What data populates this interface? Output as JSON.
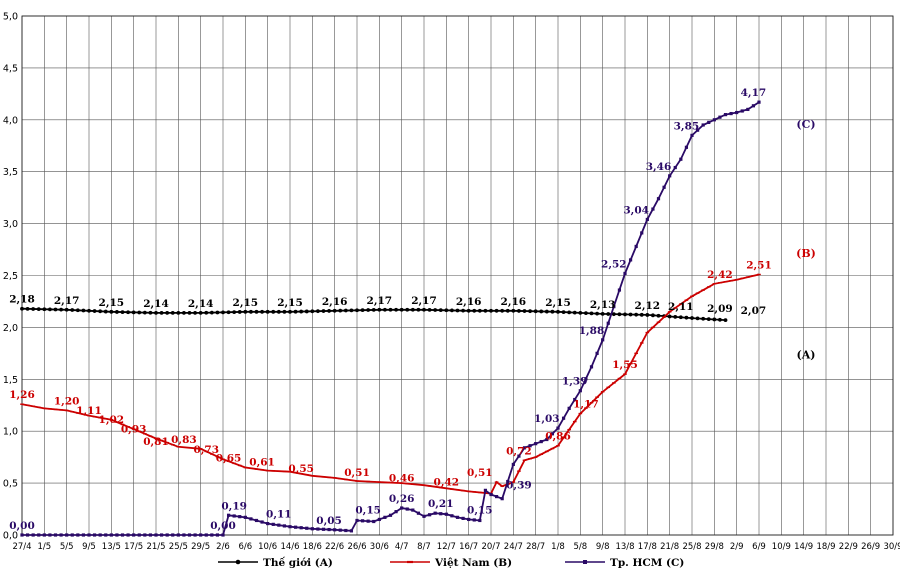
{
  "chart_data": {
    "type": "line",
    "title": "",
    "xlabel": "",
    "ylabel": "",
    "ylim": [
      0,
      5
    ],
    "yticks": [
      "0,0",
      "0,5",
      "1,0",
      "1,5",
      "2,0",
      "2,5",
      "3,0",
      "3,5",
      "4,0",
      "4,5",
      "5,0"
    ],
    "xticks": [
      "27/4",
      "1/5",
      "5/5",
      "9/5",
      "13/5",
      "17/5",
      "21/5",
      "25/5",
      "29/5",
      "2/6",
      "6/6",
      "10/6",
      "14/6",
      "18/6",
      "22/6",
      "26/6",
      "30/6",
      "4/7",
      "8/7",
      "12/7",
      "16/7",
      "20/7",
      "24/7",
      "28/7",
      "1/8",
      "5/8",
      "9/8",
      "13/8",
      "17/8",
      "21/8",
      "25/8",
      "29/8",
      "2/9",
      "6/9",
      "10/9",
      "14/9",
      "18/9",
      "22/9",
      "26/9",
      "30/9"
    ],
    "grid": true,
    "legend_position": "bottom",
    "series": [
      {
        "name": "Thế giới (A)",
        "side_label": "(A)",
        "color": "#000000",
        "x": [
          0,
          8,
          16,
          24,
          32,
          40,
          48,
          56,
          64,
          72,
          80,
          88,
          96,
          100,
          104,
          112,
          120,
          126
        ],
        "y": [
          2.18,
          2.17,
          2.15,
          2.14,
          2.14,
          2.15,
          2.15,
          2.16,
          2.17,
          2.17,
          2.16,
          2.16,
          2.15,
          2.14,
          2.13,
          2.12,
          2.09,
          2.07
        ],
        "labels": [
          {
            "x": 0,
            "y": 2.18,
            "text": "2,18"
          },
          {
            "x": 8,
            "y": 2.17,
            "text": "2,17"
          },
          {
            "x": 16,
            "y": 2.15,
            "text": "2,15"
          },
          {
            "x": 24,
            "y": 2.14,
            "text": "2,14"
          },
          {
            "x": 32,
            "y": 2.14,
            "text": "2,14"
          },
          {
            "x": 40,
            "y": 2.15,
            "text": "2,15"
          },
          {
            "x": 48,
            "y": 2.15,
            "text": "2,15"
          },
          {
            "x": 56,
            "y": 2.16,
            "text": "2,16"
          },
          {
            "x": 64,
            "y": 2.17,
            "text": "2,17"
          },
          {
            "x": 72,
            "y": 2.17,
            "text": "2,17"
          },
          {
            "x": 80,
            "y": 2.16,
            "text": "2,16"
          },
          {
            "x": 88,
            "y": 2.16,
            "text": "2,16"
          },
          {
            "x": 96,
            "y": 2.15,
            "text": "2,15"
          },
          {
            "x": 104,
            "y": 2.13,
            "text": "2,13"
          },
          {
            "x": 112,
            "y": 2.12,
            "text": "2,12"
          },
          {
            "x": 118,
            "y": 2.11,
            "text": "2,11"
          },
          {
            "x": 125,
            "y": 2.09,
            "text": "2,09"
          },
          {
            "x": 131,
            "y": 2.07,
            "text": "2,07"
          }
        ]
      },
      {
        "name": "Việt Nam (B)",
        "side_label": "(B)",
        "color": "#cc0000",
        "x": [
          0,
          4,
          8,
          12,
          16,
          20,
          24,
          28,
          32,
          36,
          40,
          44,
          48,
          52,
          56,
          60,
          64,
          68,
          72,
          76,
          80,
          84,
          85,
          86,
          88,
          90,
          92,
          96,
          100,
          104,
          108,
          112,
          116,
          120,
          124,
          128,
          132
        ],
        "y": [
          1.26,
          1.22,
          1.2,
          1.15,
          1.11,
          1.02,
          0.93,
          0.85,
          0.83,
          0.73,
          0.65,
          0.62,
          0.61,
          0.57,
          0.55,
          0.52,
          0.51,
          0.5,
          0.48,
          0.45,
          0.42,
          0.4,
          0.51,
          0.47,
          0.51,
          0.72,
          0.75,
          0.86,
          1.17,
          1.38,
          1.55,
          1.95,
          2.15,
          2.3,
          2.42,
          2.46,
          2.51
        ],
        "labels": [
          {
            "x": 0,
            "y": 1.26,
            "text": "1,26"
          },
          {
            "x": 8,
            "y": 1.2,
            "text": "1,20"
          },
          {
            "x": 12,
            "y": 1.11,
            "text": "1,11"
          },
          {
            "x": 16,
            "y": 1.02,
            "text": "1,02"
          },
          {
            "x": 20,
            "y": 0.93,
            "text": "0,93"
          },
          {
            "x": 24,
            "y": 0.81,
            "text": "0,81"
          },
          {
            "x": 29,
            "y": 0.83,
            "text": "0,83"
          },
          {
            "x": 33,
            "y": 0.73,
            "text": "0,73"
          },
          {
            "x": 37,
            "y": 0.65,
            "text": "0,65"
          },
          {
            "x": 43,
            "y": 0.61,
            "text": "0,61"
          },
          {
            "x": 50,
            "y": 0.55,
            "text": "0,55"
          },
          {
            "x": 60,
            "y": 0.51,
            "text": "0,51"
          },
          {
            "x": 68,
            "y": 0.46,
            "text": "0,46"
          },
          {
            "x": 76,
            "y": 0.42,
            "text": "0,42"
          },
          {
            "x": 82,
            "y": 0.51,
            "text": "0,51"
          },
          {
            "x": 89,
            "y": 0.72,
            "text": "0,72"
          },
          {
            "x": 96,
            "y": 0.86,
            "text": "0,86"
          },
          {
            "x": 101,
            "y": 1.17,
            "text": "1,17"
          },
          {
            "x": 108,
            "y": 1.55,
            "text": "1,55"
          },
          {
            "x": 125,
            "y": 2.42,
            "text": "2,42"
          },
          {
            "x": 132,
            "y": 2.51,
            "text": "2,51"
          }
        ]
      },
      {
        "name": "Tp. HCM (C)",
        "side_label": "(C)",
        "color": "#2a0a66",
        "x": [
          0,
          20,
          36,
          37,
          40,
          44,
          48,
          52,
          56,
          59,
          60,
          63,
          64,
          66,
          68,
          70,
          72,
          74,
          76,
          78,
          80,
          82,
          83,
          84,
          86,
          88,
          90,
          92,
          94,
          96,
          98,
          100,
          102,
          104,
          106,
          108,
          110,
          112,
          114,
          116,
          118,
          120,
          122,
          124,
          126,
          128,
          130,
          132
        ],
        "y": [
          0,
          0,
          0,
          0.19,
          0.17,
          0.11,
          0.08,
          0.06,
          0.05,
          0.04,
          0.14,
          0.13,
          0.15,
          0.19,
          0.26,
          0.24,
          0.18,
          0.21,
          0.2,
          0.17,
          0.15,
          0.14,
          0.43,
          0.39,
          0.35,
          0.68,
          0.84,
          0.88,
          0.92,
          1.03,
          1.22,
          1.39,
          1.62,
          1.88,
          2.2,
          2.52,
          2.78,
          3.04,
          3.24,
          3.46,
          3.62,
          3.85,
          3.95,
          4.0,
          4.05,
          4.07,
          4.1,
          4.17
        ],
        "labels": [
          {
            "x": 0,
            "y": 0,
            "text": "0,00"
          },
          {
            "x": 36,
            "y": 0,
            "text": "0,00"
          },
          {
            "x": 38,
            "y": 0.19,
            "text": "0,19"
          },
          {
            "x": 46,
            "y": 0.11,
            "text": "0,11"
          },
          {
            "x": 55,
            "y": 0.05,
            "text": "0,05"
          },
          {
            "x": 62,
            "y": 0.15,
            "text": "0,15"
          },
          {
            "x": 68,
            "y": 0.26,
            "text": "0,26"
          },
          {
            "x": 75,
            "y": 0.21,
            "text": "0,21"
          },
          {
            "x": 82,
            "y": 0.15,
            "text": "0,15"
          },
          {
            "x": 89,
            "y": 0.39,
            "text": "0,39"
          },
          {
            "x": 94,
            "y": 1.03,
            "text": "1,03"
          },
          {
            "x": 99,
            "y": 1.39,
            "text": "1,39"
          },
          {
            "x": 102,
            "y": 1.88,
            "text": "1,88"
          },
          {
            "x": 106,
            "y": 2.52,
            "text": "2,52"
          },
          {
            "x": 110,
            "y": 3.04,
            "text": "3,04"
          },
          {
            "x": 114,
            "y": 3.46,
            "text": "3,46"
          },
          {
            "x": 119,
            "y": 3.85,
            "text": "3,85"
          },
          {
            "x": 131,
            "y": 4.17,
            "text": "4,17"
          }
        ]
      }
    ]
  }
}
